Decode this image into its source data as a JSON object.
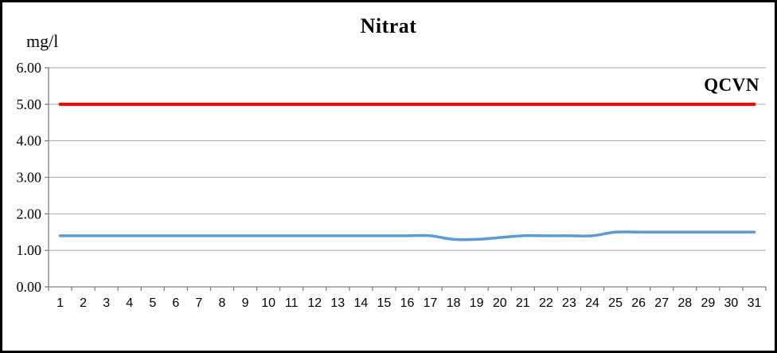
{
  "chart_data": {
    "type": "line",
    "title": "Nitrat",
    "ylabel": "mg/l",
    "xlabel": "",
    "ylim": [
      0,
      6
    ],
    "y_tick_labels": [
      "6.00",
      "5.00",
      "4.00",
      "3.00",
      "2.00",
      "1.00",
      "0.00"
    ],
    "y_tick_values": [
      6,
      5,
      4,
      3,
      2,
      1,
      0
    ],
    "categories": [
      1,
      2,
      3,
      4,
      5,
      6,
      7,
      8,
      9,
      10,
      11,
      12,
      13,
      14,
      15,
      16,
      17,
      18,
      19,
      20,
      21,
      22,
      23,
      24,
      25,
      26,
      27,
      28,
      29,
      30,
      31
    ],
    "series": [
      {
        "name": "QCVN",
        "color": "#FF0000",
        "stroke_width": 4,
        "smooth": false,
        "values": [
          5,
          5,
          5,
          5,
          5,
          5,
          5,
          5,
          5,
          5,
          5,
          5,
          5,
          5,
          5,
          5,
          5,
          5,
          5,
          5,
          5,
          5,
          5,
          5,
          5,
          5,
          5,
          5,
          5,
          5,
          5
        ]
      },
      {
        "name": "Nitrat",
        "color": "#5B9BD5",
        "stroke_width": 3.5,
        "smooth": true,
        "values": [
          1.4,
          1.4,
          1.4,
          1.4,
          1.4,
          1.4,
          1.4,
          1.4,
          1.4,
          1.4,
          1.4,
          1.4,
          1.4,
          1.4,
          1.4,
          1.4,
          1.4,
          1.3,
          1.3,
          1.35,
          1.4,
          1.4,
          1.4,
          1.4,
          1.5,
          1.5,
          1.5,
          1.5,
          1.5,
          1.5,
          1.5
        ]
      }
    ],
    "annotation": {
      "text": "QCVN"
    },
    "grid": true,
    "grid_color": "#A6A6A6",
    "axis_color": "#808080",
    "legend": "none"
  }
}
